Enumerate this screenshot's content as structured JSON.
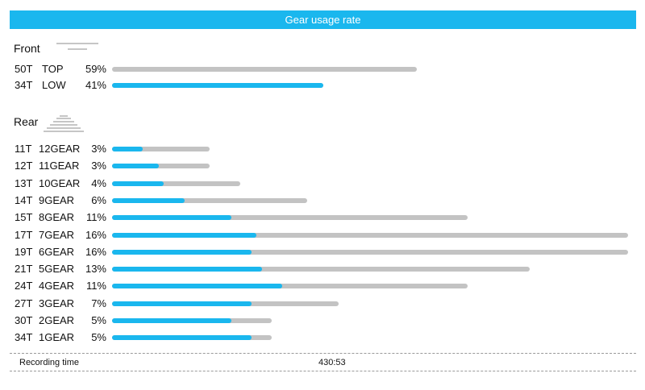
{
  "title": "Gear usage rate",
  "front": {
    "label": "Front",
    "rows": [
      {
        "teeth": "50T",
        "name": "TOP",
        "pct_label": "59%",
        "fill": 0.0,
        "bar_pct": 59
      },
      {
        "teeth": "34T",
        "name": "LOW",
        "pct_label": "41%",
        "fill": 1.0,
        "bar_pct": 41
      }
    ]
  },
  "rear": {
    "label": "Rear",
    "rows": [
      {
        "teeth": "11T",
        "name": "12GEAR",
        "pct_label": "3%",
        "bar_pct": 3
      },
      {
        "teeth": "12T",
        "name": "11GEAR",
        "pct_label": "3%",
        "bar_pct": 3
      },
      {
        "teeth": "13T",
        "name": "10GEAR",
        "pct_label": "4%",
        "bar_pct": 4
      },
      {
        "teeth": "14T",
        "name": "9GEAR",
        "pct_label": "6%",
        "bar_pct": 6
      },
      {
        "teeth": "15T",
        "name": "8GEAR",
        "pct_label": "11%",
        "bar_pct": 11
      },
      {
        "teeth": "17T",
        "name": "7GEAR",
        "pct_label": "16%",
        "bar_pct": 16
      },
      {
        "teeth": "19T",
        "name": "6GEAR",
        "pct_label": "16%",
        "bar_pct": 16
      },
      {
        "teeth": "21T",
        "name": "5GEAR",
        "pct_label": "13%",
        "bar_pct": 13
      },
      {
        "teeth": "24T",
        "name": "4GEAR",
        "pct_label": "11%",
        "bar_pct": 11
      },
      {
        "teeth": "27T",
        "name": "3GEAR",
        "pct_label": "7%",
        "bar_pct": 7
      },
      {
        "teeth": "30T",
        "name": "2GEAR",
        "pct_label": "5%",
        "bar_pct": 5
      },
      {
        "teeth": "34T",
        "name": "1GEAR",
        "pct_label": "5%",
        "bar_pct": 5
      }
    ]
  },
  "footer": {
    "recording_label": "Recording time",
    "recording_value": "430:53"
  },
  "colors": {
    "accent": "#1ab7ee",
    "track": "#c3c3c3"
  }
}
